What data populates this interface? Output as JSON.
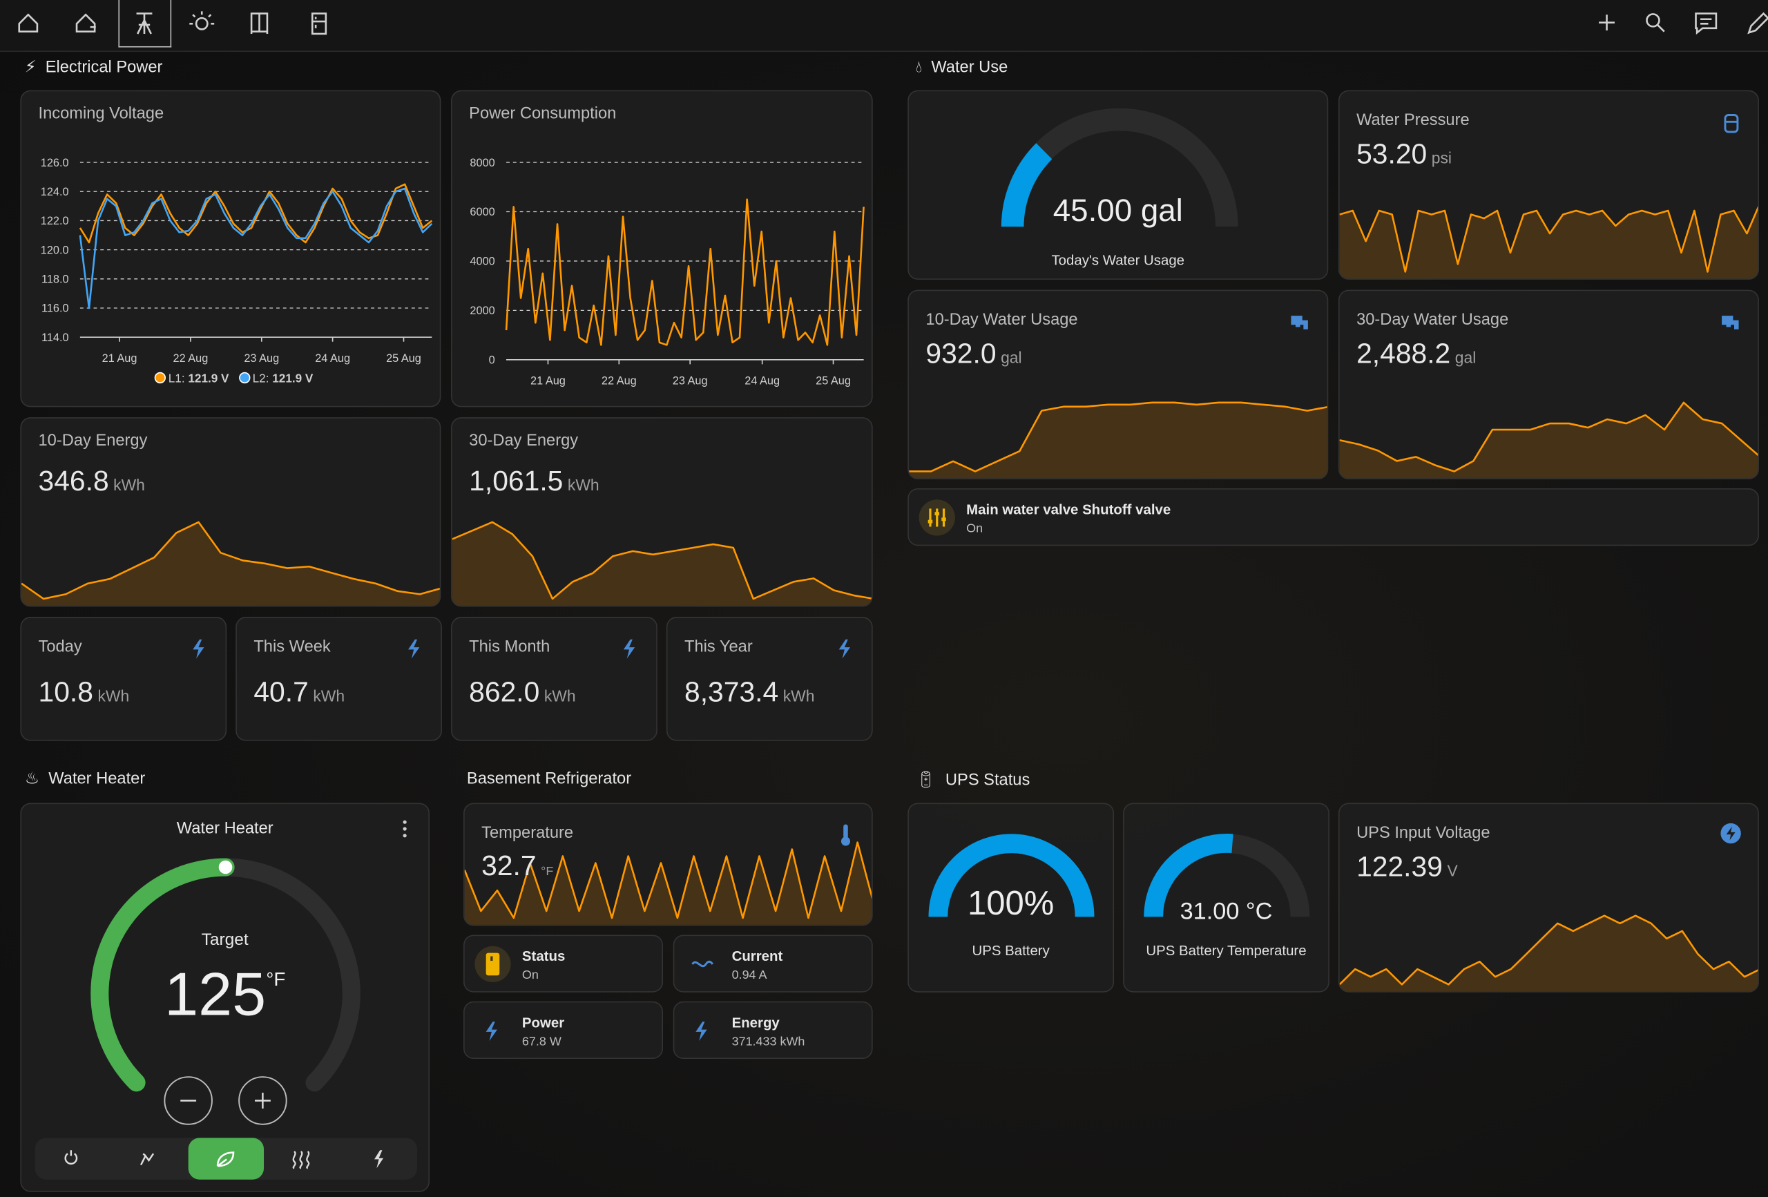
{
  "sections": {
    "electrical": "Electrical Power",
    "water": "Water Use",
    "heater": "Water Heater",
    "fridge": "Basement Refrigerator",
    "ups": "UPS Status"
  },
  "voltage": {
    "type": "line",
    "title": "Incoming Voltage",
    "x_labels": [
      "21 Aug",
      "22 Aug",
      "23 Aug",
      "24 Aug",
      "25 Aug"
    ],
    "ylim": [
      114,
      126
    ],
    "yticks": [
      {
        "value": 114,
        "label": "114.0"
      },
      {
        "value": 116,
        "label": "116.0"
      },
      {
        "value": 118,
        "label": "118.0"
      },
      {
        "value": 120,
        "label": "120.0"
      },
      {
        "value": 122,
        "label": "122.0"
      },
      {
        "value": 124,
        "label": "124.0"
      },
      {
        "value": 126,
        "label": "126.0"
      }
    ],
    "grid": true,
    "series": [
      {
        "name": "L1:",
        "current": "121.9 V",
        "color": "#ff9800",
        "values": [
          121.5,
          120.5,
          122.5,
          123.8,
          123.2,
          121.5,
          121.0,
          121.8,
          123.0,
          123.8,
          122.5,
          121.5,
          121.0,
          121.8,
          123.2,
          124.0,
          123.0,
          121.8,
          121.2,
          121.5,
          122.8,
          124.0,
          123.2,
          121.8,
          121.0,
          120.5,
          121.5,
          123.0,
          124.2,
          123.5,
          122.0,
          121.2,
          120.8,
          121.0,
          122.5,
          124.2,
          124.5,
          123.0,
          121.5,
          122.0
        ]
      },
      {
        "name": "L2:",
        "current": "121.9 V",
        "color": "#42a5f5",
        "values": [
          121.0,
          116.0,
          122.0,
          123.5,
          123.0,
          121.0,
          121.2,
          122.0,
          123.2,
          123.5,
          122.0,
          121.2,
          121.3,
          122.0,
          123.5,
          123.8,
          122.5,
          121.5,
          121.0,
          121.8,
          123.0,
          123.8,
          122.8,
          121.5,
          120.8,
          120.8,
          121.8,
          123.2,
          124.0,
          123.0,
          121.5,
          121.0,
          120.5,
          121.3,
          123.0,
          124.0,
          124.2,
          122.5,
          121.2,
          121.8
        ]
      }
    ]
  },
  "power": {
    "type": "line",
    "title": "Power Consumption",
    "x_labels": [
      "21 Aug",
      "22 Aug",
      "23 Aug",
      "24 Aug",
      "25 Aug"
    ],
    "ylim": [
      0,
      8000
    ],
    "yticks": [
      0,
      2000,
      4000,
      6000,
      8000
    ],
    "grid": true,
    "color": "#ff9800",
    "values": [
      1200,
      6200,
      2500,
      4500,
      1500,
      3500,
      800,
      5500,
      1200,
      3000,
      900,
      700,
      2200,
      600,
      4200,
      1000,
      5800,
      2500,
      800,
      1200,
      3200,
      700,
      600,
      1500,
      900,
      3800,
      800,
      1100,
      4500,
      1000,
      2600,
      700,
      900,
      6500,
      3000,
      5200,
      1500,
      4000,
      900,
      2500,
      800,
      1100,
      700,
      1800,
      600,
      5200,
      900,
      4200,
      1000,
      6200
    ]
  },
  "energy10": {
    "title": "10-Day Energy",
    "value": "346.8",
    "unit": "kWh",
    "spark": [
      1.5,
      0.5,
      0.8,
      1.5,
      1.8,
      2.5,
      3.2,
      4.8,
      5.5,
      3.5,
      3.0,
      2.8,
      2.5,
      2.6,
      2.2,
      1.8,
      1.5,
      1.0,
      0.8,
      1.2
    ]
  },
  "energy30": {
    "title": "30-Day Energy",
    "value": "1,061.5",
    "unit": "kWh",
    "spark": [
      4.5,
      5.0,
      5.5,
      4.8,
      3.5,
      1.0,
      2.0,
      2.5,
      3.5,
      3.8,
      3.6,
      3.8,
      4.0,
      4.2,
      4.0,
      1.0,
      1.5,
      2.0,
      2.2,
      1.5,
      1.2,
      1.0
    ]
  },
  "tiles": [
    {
      "title": "Today",
      "value": "10.8",
      "unit": "kWh"
    },
    {
      "title": "This Week",
      "value": "40.7",
      "unit": "kWh"
    },
    {
      "title": "This Month",
      "value": "862.0",
      "unit": "kWh"
    },
    {
      "title": "This Year",
      "value": "8,373.4",
      "unit": "kWh"
    }
  ],
  "water_today": {
    "value": "45.00 gal",
    "label": "Today's Water Usage"
  },
  "pressure": {
    "title": "Water Pressure",
    "value": "53.20",
    "unit": "psi",
    "spark": [
      55,
      56,
      48,
      56,
      55,
      40,
      56,
      55,
      56,
      42,
      55,
      54,
      56,
      45,
      55,
      56,
      50,
      55,
      56,
      55,
      56,
      52,
      55,
      56,
      55,
      56,
      45,
      56,
      40,
      55,
      56,
      50,
      58
    ]
  },
  "water10": {
    "title": "10-Day Water Usage",
    "value": "932.0",
    "unit": "gal",
    "spark": [
      0,
      0,
      5,
      0,
      5,
      10,
      30,
      32,
      32,
      33,
      33,
      34,
      34,
      33,
      34,
      34,
      33,
      32,
      30,
      32
    ]
  },
  "water30": {
    "title": "30-Day Water Usage",
    "value": "2,488.2",
    "unit": "gal",
    "spark": [
      20,
      18,
      15,
      10,
      12,
      8,
      5,
      10,
      25,
      25,
      25,
      28,
      28,
      26,
      30,
      28,
      32,
      25,
      38,
      30,
      28,
      20,
      12
    ]
  },
  "valve": {
    "name": "Main water valve Shutoff valve",
    "state": "On"
  },
  "heater": {
    "title": "Water Heater",
    "label": "Target",
    "value": "125",
    "unit": "°F"
  },
  "fridge_temp": {
    "title": "Temperature",
    "value": "32.7",
    "unit": "°F",
    "spark": [
      36,
      30,
      33,
      29,
      37,
      30,
      38,
      30,
      37,
      29,
      38,
      30,
      37,
      29,
      38,
      30,
      38,
      29,
      38,
      30,
      39,
      29,
      38,
      30,
      40,
      31
    ]
  },
  "fridge_tiles": [
    {
      "name": "Status",
      "state": "On"
    },
    {
      "name": "Current",
      "state": "0.94 A"
    },
    {
      "name": "Power",
      "state": "67.8 W"
    },
    {
      "name": "Energy",
      "state": "371.433 kWh"
    }
  ],
  "ups_battery": {
    "value": "100%",
    "label": "UPS Battery"
  },
  "ups_temp": {
    "value": "31.00 °C",
    "label": "UPS Battery Temperature"
  },
  "ups_voltage": {
    "title": "UPS Input Voltage",
    "value": "122.39",
    "unit": "V",
    "spark": [
      120,
      121,
      120.5,
      121,
      120,
      121,
      120.5,
      120,
      121,
      121.5,
      120.5,
      121,
      122,
      123,
      124,
      123.5,
      124,
      124.5,
      124,
      124.5,
      124,
      123,
      123.5,
      122,
      121,
      121.5,
      120.5,
      121
    ]
  }
}
